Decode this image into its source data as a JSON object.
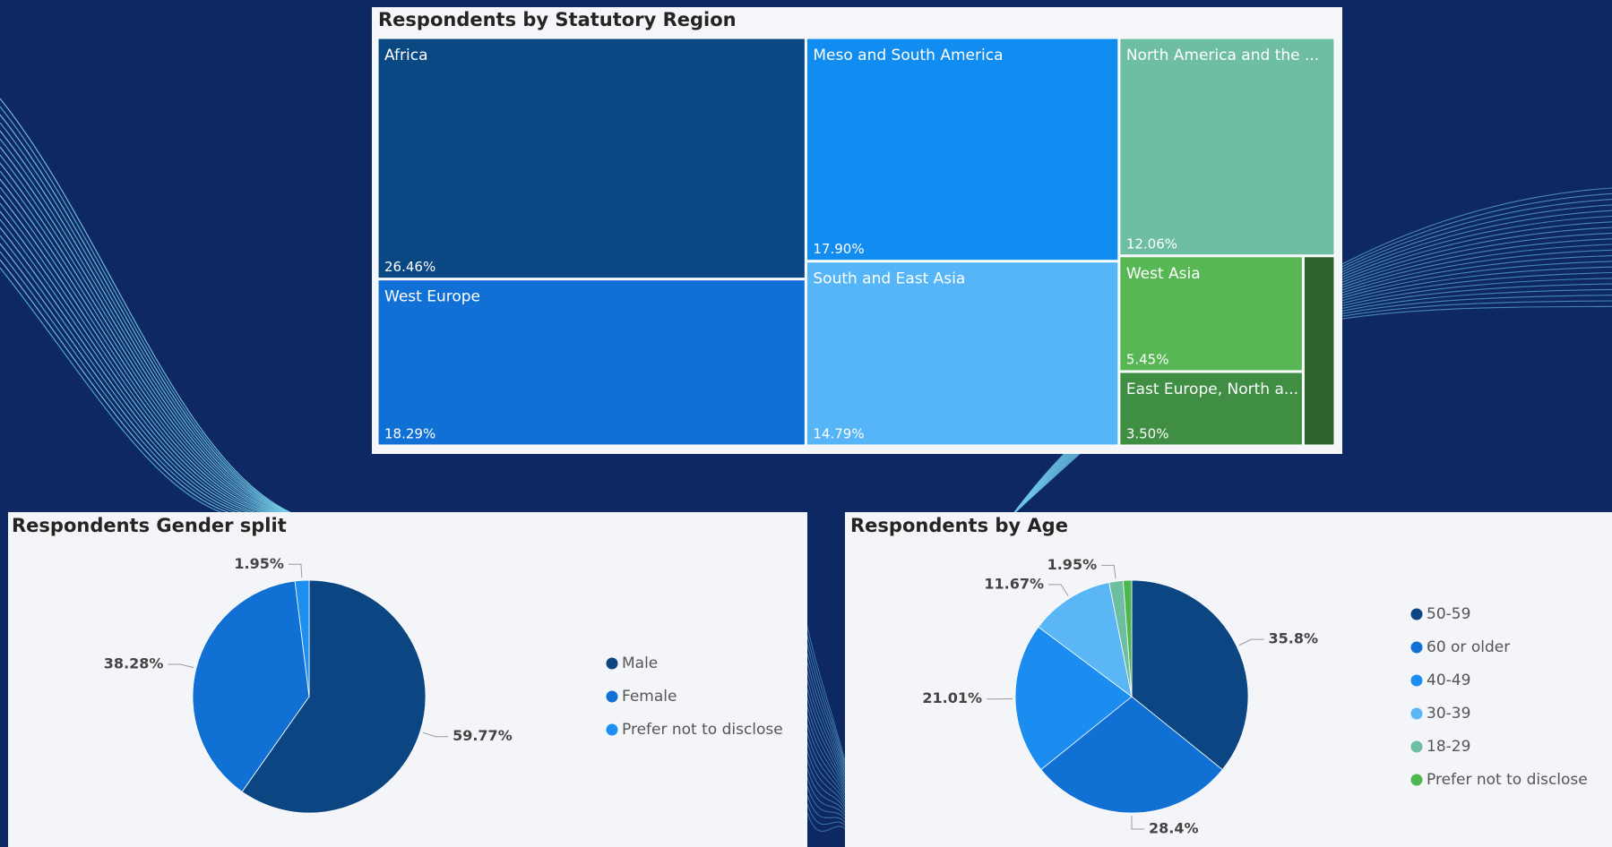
{
  "chart_data": [
    {
      "type": "treemap",
      "title": "Respondents by Statutory Region",
      "categories": [
        "Africa",
        "West Europe",
        "Meso and South America",
        "South and East Asia",
        "North America and the ...",
        "West Asia",
        "East Europe, North a...",
        null
      ],
      "values": [
        26.46,
        18.29,
        17.9,
        14.79,
        12.06,
        5.45,
        3.5,
        1.55
      ],
      "value_labels": [
        "26.46%",
        "18.29%",
        "17.90%",
        "14.79%",
        "12.06%",
        "5.45%",
        "3.50%",
        null
      ],
      "colors": [
        "#0a4884",
        "#1170d6",
        "#118cf0",
        "#55b5f7",
        "#6ebea4",
        "#57b754",
        "#3f8e44",
        "#2d6430"
      ]
    },
    {
      "type": "pie",
      "title": "Respondents Gender split",
      "categories": [
        "Male",
        "Female",
        "Prefer not to disclose"
      ],
      "values": [
        59.77,
        38.28,
        1.95
      ],
      "value_labels": [
        "59.77%",
        "38.28%",
        "1.95%"
      ],
      "colors": [
        "#0b4682",
        "#1170d4",
        "#1c8ff0"
      ],
      "legend": "right"
    },
    {
      "type": "pie",
      "title": "Respondents by Age",
      "categories": [
        "50-59",
        "60 or older",
        "40-49",
        "30-39",
        "18-29",
        "Prefer not to disclose"
      ],
      "values": [
        35.8,
        28.4,
        21.01,
        11.67,
        1.95,
        1.17
      ],
      "value_labels": [
        "35.8%",
        "28.4%",
        "21.01%",
        "11.67%",
        "1.95%",
        null
      ],
      "colors": [
        "#0b4682",
        "#1170d4",
        "#1c8df0",
        "#5ab6f5",
        "#6ebea4",
        "#4cb84f"
      ],
      "legend": "right"
    }
  ]
}
